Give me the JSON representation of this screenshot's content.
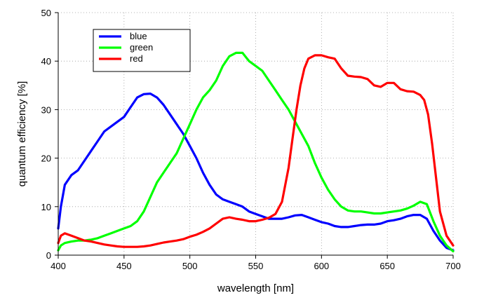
{
  "chart_data": {
    "type": "line",
    "xlabel": "wavelength [nm]",
    "ylabel": "quantum efficiency [%]",
    "xlim": [
      400,
      700
    ],
    "ylim": [
      0,
      50
    ],
    "xticks": [
      400,
      450,
      500,
      550,
      600,
      650,
      700
    ],
    "yticks": [
      0,
      10,
      20,
      30,
      40,
      50
    ],
    "grid": true,
    "legend_position": "top-left",
    "series": [
      {
        "name": "blue",
        "color": "#0000ff",
        "x": [
          400,
          402,
          405,
          410,
          415,
          420,
          425,
          430,
          435,
          440,
          445,
          450,
          455,
          460,
          465,
          470,
          475,
          480,
          485,
          490,
          495,
          500,
          505,
          510,
          515,
          520,
          525,
          530,
          535,
          540,
          545,
          550,
          555,
          560,
          565,
          570,
          575,
          580,
          585,
          590,
          595,
          600,
          605,
          610,
          615,
          620,
          625,
          630,
          635,
          640,
          645,
          650,
          655,
          660,
          665,
          670,
          675,
          680,
          685,
          690,
          695,
          700
        ],
        "y": [
          5.5,
          10,
          14.5,
          16.5,
          17.5,
          19.5,
          21.5,
          23.5,
          25.5,
          26.5,
          27.5,
          28.5,
          30.5,
          32.5,
          33.2,
          33.3,
          32.5,
          31,
          29,
          27,
          25,
          22.5,
          20,
          17,
          14.5,
          12.5,
          11.5,
          11,
          10.5,
          10,
          9,
          8.5,
          8,
          7.5,
          7.5,
          7.5,
          7.8,
          8.2,
          8.3,
          7.8,
          7.3,
          6.8,
          6.5,
          6,
          5.8,
          5.8,
          6,
          6.2,
          6.3,
          6.3,
          6.5,
          7,
          7.2,
          7.5,
          8,
          8.3,
          8.3,
          7.5,
          5,
          3,
          1.5,
          1
        ]
      },
      {
        "name": "green",
        "color": "#00ff00",
        "x": [
          400,
          402,
          405,
          410,
          415,
          420,
          425,
          430,
          435,
          440,
          445,
          450,
          455,
          460,
          465,
          470,
          475,
          480,
          485,
          490,
          495,
          500,
          505,
          510,
          515,
          520,
          525,
          530,
          535,
          540,
          545,
          550,
          555,
          560,
          565,
          570,
          575,
          580,
          585,
          590,
          595,
          600,
          605,
          610,
          615,
          620,
          625,
          630,
          635,
          640,
          645,
          650,
          655,
          660,
          665,
          670,
          675,
          680,
          685,
          690,
          695,
          700
        ],
        "y": [
          1,
          2,
          2.5,
          2.8,
          3,
          3,
          3.2,
          3.5,
          4,
          4.5,
          5,
          5.5,
          6,
          7,
          9,
          12,
          15,
          17,
          19,
          21,
          24,
          27,
          30,
          32.5,
          34,
          36,
          39,
          41,
          41.7,
          41.7,
          40,
          39,
          38,
          36,
          34,
          32,
          30,
          27.5,
          25,
          22.5,
          19,
          16,
          13.5,
          11.5,
          10,
          9.2,
          9,
          9,
          8.8,
          8.6,
          8.6,
          8.8,
          9,
          9.2,
          9.6,
          10.2,
          11,
          10.5,
          7,
          4,
          2,
          0.8
        ]
      },
      {
        "name": "red",
        "color": "#ff0000",
        "x": [
          400,
          402,
          405,
          410,
          415,
          420,
          425,
          430,
          435,
          440,
          445,
          450,
          455,
          460,
          465,
          470,
          475,
          480,
          485,
          490,
          495,
          500,
          505,
          510,
          515,
          520,
          525,
          530,
          535,
          540,
          545,
          550,
          555,
          560,
          565,
          570,
          575,
          578,
          581,
          584,
          587,
          590,
          595,
          600,
          605,
          610,
          615,
          620,
          625,
          630,
          635,
          640,
          645,
          650,
          655,
          660,
          665,
          670,
          675,
          678,
          681,
          684,
          687,
          690,
          695,
          700
        ],
        "y": [
          2.5,
          4,
          4.5,
          4,
          3.5,
          3,
          2.8,
          2.5,
          2.2,
          2,
          1.8,
          1.7,
          1.7,
          1.7,
          1.8,
          2,
          2.3,
          2.6,
          2.8,
          3,
          3.3,
          3.8,
          4.2,
          4.8,
          5.5,
          6.5,
          7.5,
          7.8,
          7.5,
          7.3,
          7,
          7,
          7.3,
          7.7,
          8.5,
          11,
          18,
          24,
          30,
          35,
          38.5,
          40.5,
          41.2,
          41.2,
          40.8,
          40.5,
          38.5,
          37,
          36.8,
          36.7,
          36.3,
          35,
          34.7,
          35.5,
          35.5,
          34.2,
          33.8,
          33.7,
          33,
          32,
          29,
          23,
          16,
          9,
          4,
          2
        ]
      }
    ]
  }
}
